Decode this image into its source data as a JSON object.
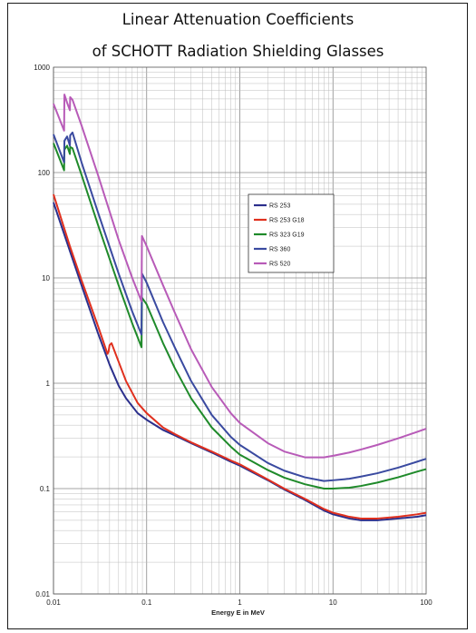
{
  "chart_data": {
    "type": "line",
    "title_line1": "Linear Attenuation Coefficients",
    "title_line2": "of SCHOTT Radiation Shielding Glasses",
    "xlabel": "Energy E in MeV",
    "ylabel": "",
    "x_scale": "log",
    "y_scale": "log",
    "xlim": [
      0.01,
      100
    ],
    "ylim": [
      0.01,
      1000
    ],
    "x_ticks": [
      "0.01",
      "0.1",
      "1",
      "10",
      "100"
    ],
    "y_ticks": [
      "1000",
      "100",
      "10",
      "1",
      "0.1",
      "0.01"
    ],
    "grid": true,
    "legend_position": "right-upper",
    "series": [
      {
        "name": "RS 253",
        "color": "#2b2f8c",
        "points": [
          [
            0.01,
            52
          ],
          [
            0.015,
            18
          ],
          [
            0.02,
            8.5
          ],
          [
            0.03,
            3.0
          ],
          [
            0.04,
            1.5
          ],
          [
            0.05,
            0.95
          ],
          [
            0.06,
            0.72
          ],
          [
            0.08,
            0.52
          ],
          [
            0.1,
            0.45
          ],
          [
            0.15,
            0.36
          ],
          [
            0.2,
            0.32
          ],
          [
            0.3,
            0.27
          ],
          [
            0.5,
            0.22
          ],
          [
            0.8,
            0.18
          ],
          [
            1,
            0.165
          ],
          [
            2,
            0.12
          ],
          [
            3,
            0.098
          ],
          [
            5,
            0.078
          ],
          [
            8,
            0.062
          ],
          [
            10,
            0.057
          ],
          [
            15,
            0.052
          ],
          [
            20,
            0.05
          ],
          [
            30,
            0.05
          ],
          [
            50,
            0.052
          ],
          [
            80,
            0.054
          ],
          [
            100,
            0.056
          ]
        ]
      },
      {
        "name": "RS 253 G18",
        "color": "#e0301e",
        "points": [
          [
            0.01,
            62
          ],
          [
            0.015,
            20
          ],
          [
            0.02,
            9.5
          ],
          [
            0.03,
            3.5
          ],
          [
            0.038,
            1.9
          ],
          [
            0.039,
            2.0
          ],
          [
            0.04,
            2.3
          ],
          [
            0.042,
            2.4
          ],
          [
            0.05,
            1.6
          ],
          [
            0.06,
            1.05
          ],
          [
            0.08,
            0.65
          ],
          [
            0.1,
            0.52
          ],
          [
            0.15,
            0.38
          ],
          [
            0.2,
            0.33
          ],
          [
            0.3,
            0.275
          ],
          [
            0.5,
            0.225
          ],
          [
            0.8,
            0.185
          ],
          [
            1,
            0.17
          ],
          [
            2,
            0.122
          ],
          [
            3,
            0.1
          ],
          [
            5,
            0.08
          ],
          [
            8,
            0.064
          ],
          [
            10,
            0.059
          ],
          [
            15,
            0.054
          ],
          [
            20,
            0.052
          ],
          [
            30,
            0.052
          ],
          [
            50,
            0.054
          ],
          [
            80,
            0.057
          ],
          [
            100,
            0.059
          ]
        ]
      },
      {
        "name": "RS 323 G19",
        "color": "#1f8a2a",
        "points": [
          [
            0.01,
            190
          ],
          [
            0.013,
            105
          ],
          [
            0.0131,
            165
          ],
          [
            0.014,
            180
          ],
          [
            0.015,
            150
          ],
          [
            0.0151,
            175
          ],
          [
            0.016,
            170
          ],
          [
            0.02,
            95
          ],
          [
            0.03,
            32
          ],
          [
            0.05,
            8.5
          ],
          [
            0.07,
            3.7
          ],
          [
            0.088,
            2.2
          ],
          [
            0.089,
            6.5
          ],
          [
            0.1,
            5.6
          ],
          [
            0.15,
            2.4
          ],
          [
            0.2,
            1.4
          ],
          [
            0.3,
            0.72
          ],
          [
            0.5,
            0.38
          ],
          [
            0.8,
            0.25
          ],
          [
            1,
            0.21
          ],
          [
            2,
            0.15
          ],
          [
            3,
            0.127
          ],
          [
            5,
            0.11
          ],
          [
            8,
            0.1
          ],
          [
            10,
            0.1
          ],
          [
            15,
            0.102
          ],
          [
            20,
            0.106
          ],
          [
            30,
            0.114
          ],
          [
            50,
            0.128
          ],
          [
            80,
            0.145
          ],
          [
            100,
            0.153
          ]
        ]
      },
      {
        "name": "RS 360",
        "color": "#3a4aa0",
        "points": [
          [
            0.01,
            230
          ],
          [
            0.013,
            125
          ],
          [
            0.0131,
            200
          ],
          [
            0.014,
            220
          ],
          [
            0.015,
            180
          ],
          [
            0.0151,
            225
          ],
          [
            0.016,
            240
          ],
          [
            0.02,
            125
          ],
          [
            0.03,
            42
          ],
          [
            0.05,
            11
          ],
          [
            0.07,
            4.8
          ],
          [
            0.088,
            2.9
          ],
          [
            0.089,
            11
          ],
          [
            0.1,
            9.0
          ],
          [
            0.15,
            3.8
          ],
          [
            0.2,
            2.2
          ],
          [
            0.3,
            1.05
          ],
          [
            0.5,
            0.5
          ],
          [
            0.8,
            0.31
          ],
          [
            1,
            0.26
          ],
          [
            2,
            0.175
          ],
          [
            3,
            0.148
          ],
          [
            5,
            0.128
          ],
          [
            8,
            0.118
          ],
          [
            10,
            0.12
          ],
          [
            15,
            0.124
          ],
          [
            20,
            0.13
          ],
          [
            30,
            0.14
          ],
          [
            50,
            0.158
          ],
          [
            80,
            0.18
          ],
          [
            100,
            0.192
          ]
        ]
      },
      {
        "name": "RS 520",
        "color": "#b85bb8",
        "points": [
          [
            0.01,
            450
          ],
          [
            0.013,
            250
          ],
          [
            0.0131,
            550
          ],
          [
            0.014,
            460
          ],
          [
            0.015,
            390
          ],
          [
            0.0151,
            520
          ],
          [
            0.016,
            490
          ],
          [
            0.02,
            280
          ],
          [
            0.03,
            95
          ],
          [
            0.05,
            23
          ],
          [
            0.07,
            10
          ],
          [
            0.088,
            6.0
          ],
          [
            0.089,
            25
          ],
          [
            0.1,
            20
          ],
          [
            0.15,
            8.5
          ],
          [
            0.2,
            4.7
          ],
          [
            0.3,
            2.1
          ],
          [
            0.5,
            0.92
          ],
          [
            0.8,
            0.52
          ],
          [
            1,
            0.42
          ],
          [
            2,
            0.27
          ],
          [
            3,
            0.225
          ],
          [
            5,
            0.198
          ],
          [
            8,
            0.198
          ],
          [
            10,
            0.205
          ],
          [
            15,
            0.22
          ],
          [
            20,
            0.235
          ],
          [
            30,
            0.26
          ],
          [
            50,
            0.3
          ],
          [
            80,
            0.345
          ],
          [
            100,
            0.37
          ]
        ]
      }
    ]
  }
}
